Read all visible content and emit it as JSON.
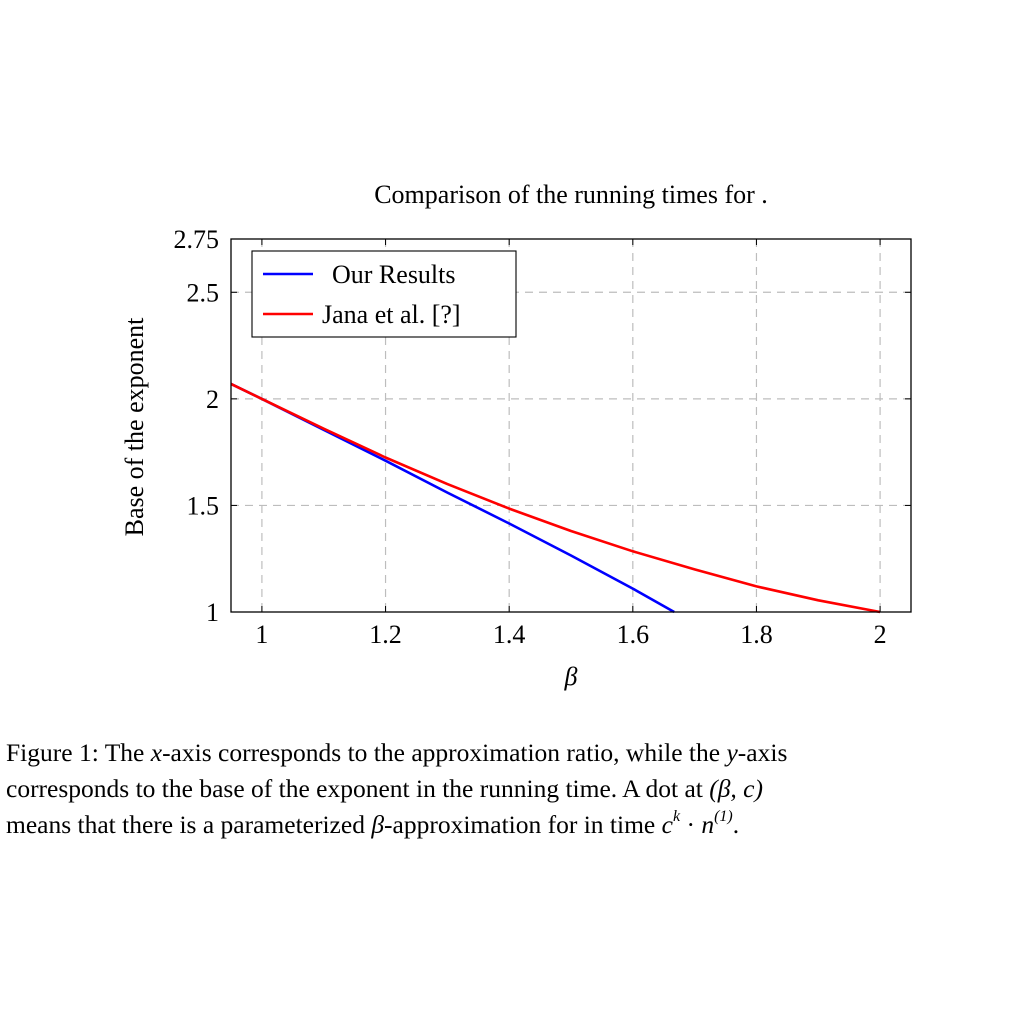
{
  "chart_data": {
    "type": "line",
    "title": "Comparison of the running times for .",
    "xlabel": "β",
    "ylabel": "Base of the exponent",
    "xlim": [
      0.95,
      2.05
    ],
    "ylim": [
      1,
      2.75
    ],
    "xticks": [
      1,
      1.2,
      1.4,
      1.6,
      1.8,
      2
    ],
    "xtick_labels": [
      "1",
      "1.2",
      "1.4",
      "1.6",
      "1.8",
      "2"
    ],
    "yticks": [
      1,
      1.5,
      2,
      2.5,
      2.75
    ],
    "ytick_labels": [
      "1",
      "1.5",
      "2",
      "2.5",
      "2.75"
    ],
    "grid": true,
    "grid_style": "dashed",
    "legend_position": "top-left",
    "series": [
      {
        "name": "Our Results",
        "color": "#0000ff",
        "x": [
          0.95,
          1.0,
          1.1,
          1.2,
          1.3,
          1.4,
          1.5,
          1.6,
          1.667
        ],
        "y": [
          2.07,
          2.0,
          1.855,
          1.71,
          1.56,
          1.415,
          1.265,
          1.11,
          1.0
        ]
      },
      {
        "name": "Jana et al. [?]",
        "color": "#ff0000",
        "x": [
          0.95,
          1.0,
          1.1,
          1.2,
          1.3,
          1.4,
          1.5,
          1.6,
          1.7,
          1.8,
          1.9,
          2.0
        ],
        "y": [
          2.07,
          2.0,
          1.86,
          1.725,
          1.6,
          1.485,
          1.38,
          1.285,
          1.2,
          1.12,
          1.055,
          1.0
        ]
      }
    ]
  },
  "caption": {
    "line1_a": "Figure 1: The ",
    "line1_x": "x",
    "line1_b": "-axis corresponds to the approximation ratio, while the ",
    "line1_y": "y",
    "line1_c": "-axis",
    "line2_a": "corresponds to the base of the exponent in the running time. A dot at ",
    "line2_math": "(β, c)",
    "line3_a": "means that there is a parameterized ",
    "line3_beta": "β",
    "line3_b": "-approximation for  in time ",
    "line3_math": "c",
    "line3_sup_k": "k",
    "line3_dot": " · ",
    "line3_n": "n",
    "line3_sup_1": "(1)",
    "line3_end": "."
  }
}
